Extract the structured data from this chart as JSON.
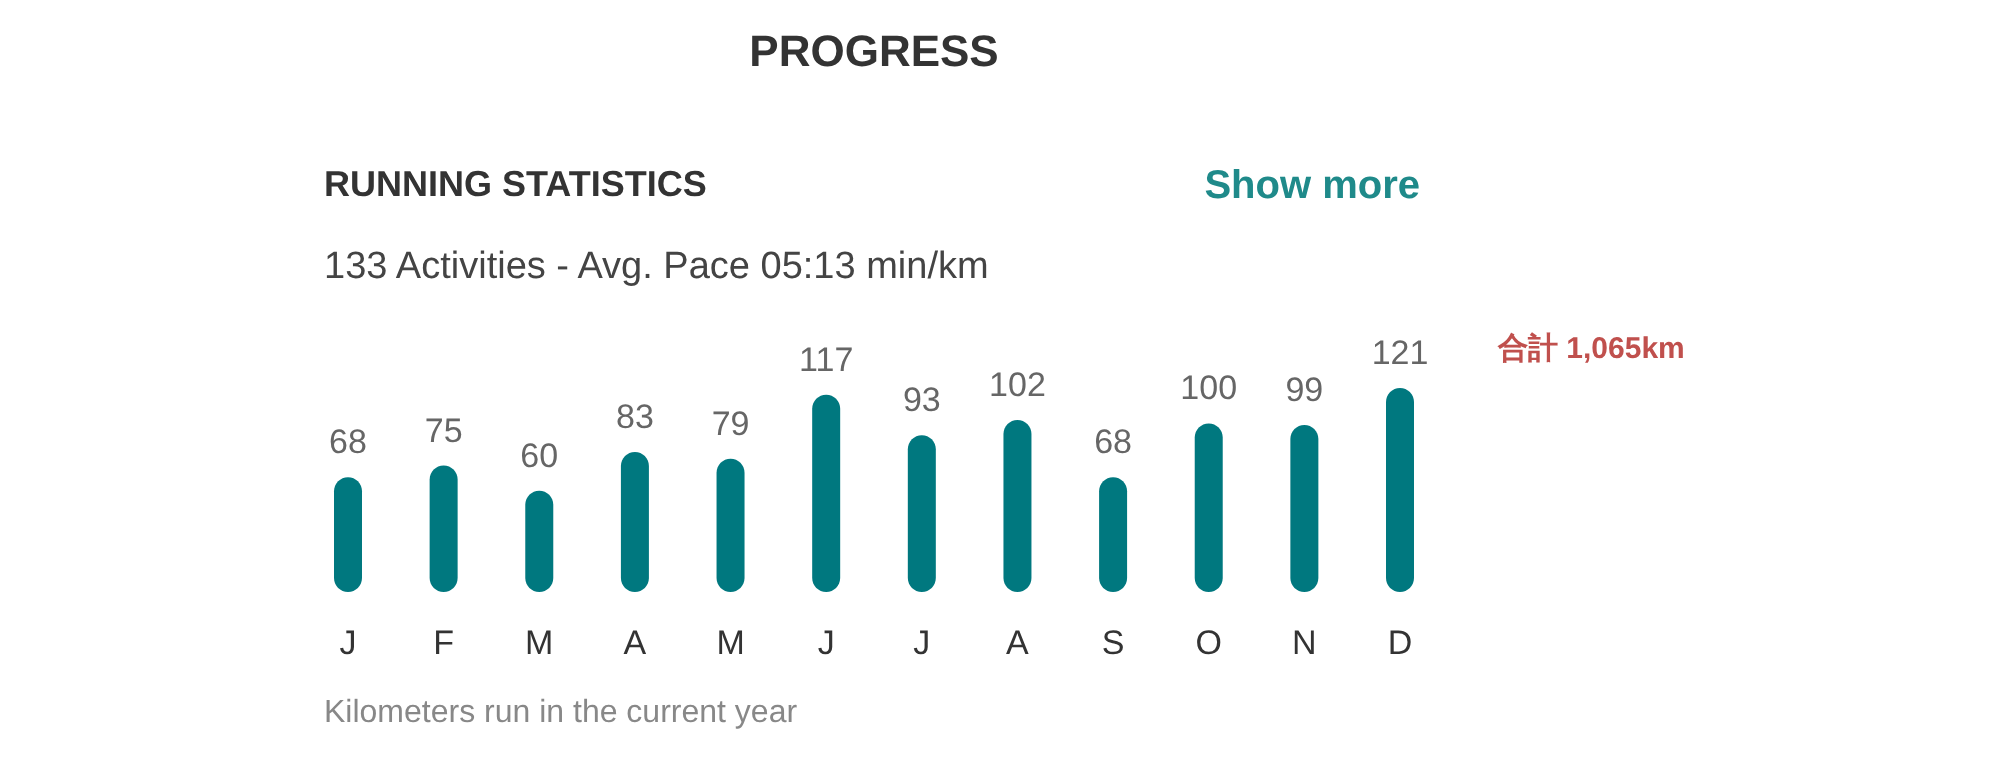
{
  "chart_data": {
    "type": "bar",
    "title": "PROGRESS",
    "subtitle": "RUNNING STATISTICS",
    "categories": [
      "J",
      "F",
      "M",
      "A",
      "M",
      "J",
      "J",
      "A",
      "S",
      "O",
      "N",
      "D"
    ],
    "series": [
      {
        "color": "#00787f",
        "values": [
          68,
          75,
          60,
          83,
          79,
          117,
          93,
          102,
          68,
          100,
          99,
          121
        ]
      }
    ],
    "data_labels": true,
    "annotations": [
      "Show more",
      "133 Activities - Avg. Pace 05:13 min/km",
      "合計 1,065km",
      "Kilometers run in the current year"
    ]
  }
}
